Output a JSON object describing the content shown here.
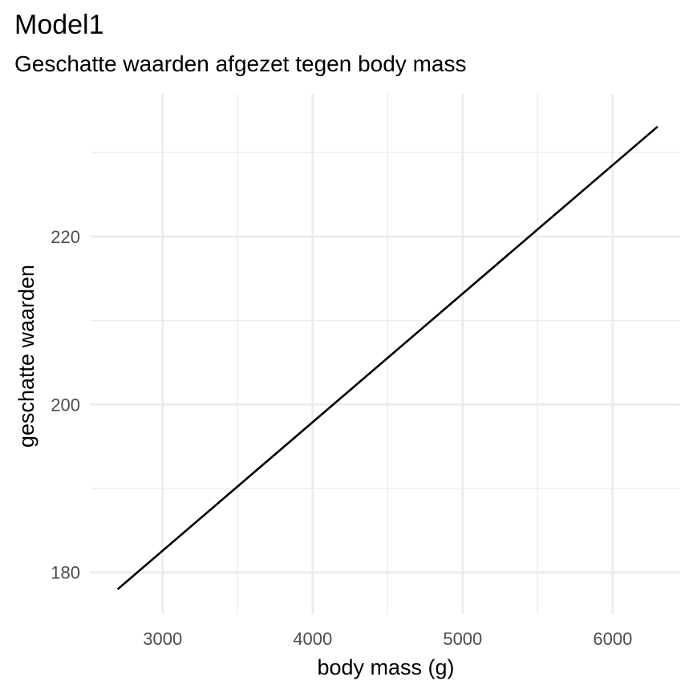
{
  "chart_data": {
    "type": "line",
    "title": "Model1",
    "subtitle": "Geschatte waarden afgezet tegen body mass",
    "xlabel": "body mass (g)",
    "ylabel": "geschatte waarden",
    "xlim": [
      2520,
      6450
    ],
    "ylim": [
      175,
      237
    ],
    "x_ticks": [
      3000,
      4000,
      5000,
      6000
    ],
    "x_tick_labels": [
      "3000",
      "4000",
      "5000",
      "6000"
    ],
    "y_ticks": [
      180,
      200,
      220
    ],
    "y_tick_labels": [
      "180",
      "200",
      "220"
    ],
    "x_minor": [
      3500,
      4500,
      5500
    ],
    "y_minor": [
      190,
      210,
      230
    ],
    "grid": true,
    "line_color": "#000000",
    "grid_color": "#ebebeb",
    "series": [
      {
        "x": [
          2700,
          6300
        ],
        "y": [
          178.0,
          233.1
        ]
      }
    ]
  }
}
